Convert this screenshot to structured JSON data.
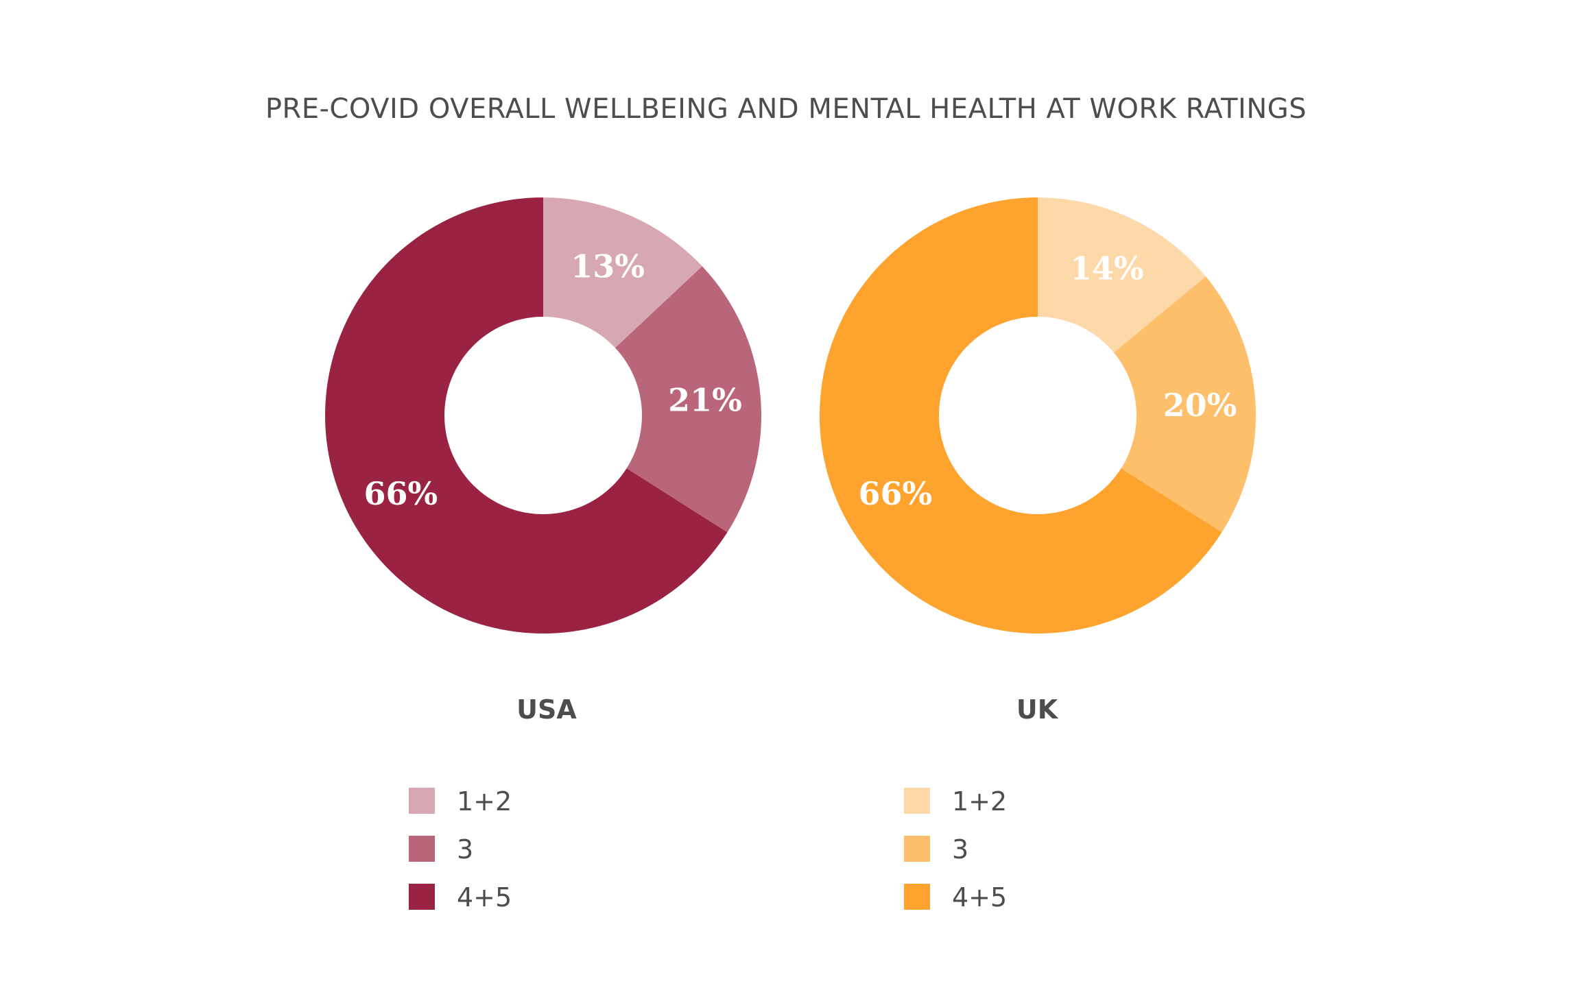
{
  "chart_data": {
    "type": "pie",
    "title": "PRE-COVID OVERALL WELLBEING AND MENTAL HEALTH AT WORK RATINGS",
    "charts": [
      {
        "id": "usa",
        "country": "USA",
        "slices": [
          {
            "label": "1+2",
            "value": 13,
            "display": "13%",
            "color": "#d8a8b2"
          },
          {
            "label": "3",
            "value": 21,
            "display": "21%",
            "color": "#b9667a"
          },
          {
            "label": "4+5",
            "value": 66,
            "display": "66%",
            "color": "#9a2343"
          }
        ]
      },
      {
        "id": "uk",
        "country": "UK",
        "slices": [
          {
            "label": "1+2",
            "value": 14,
            "display": "14%",
            "color": "#fdd9a9"
          },
          {
            "label": "3",
            "value": 20,
            "display": "20%",
            "color": "#febf6b"
          },
          {
            "label": "4+5",
            "value": 66,
            "display": "66%",
            "color": "#fea42e"
          }
        ]
      }
    ],
    "legend_placement": "bottom"
  }
}
